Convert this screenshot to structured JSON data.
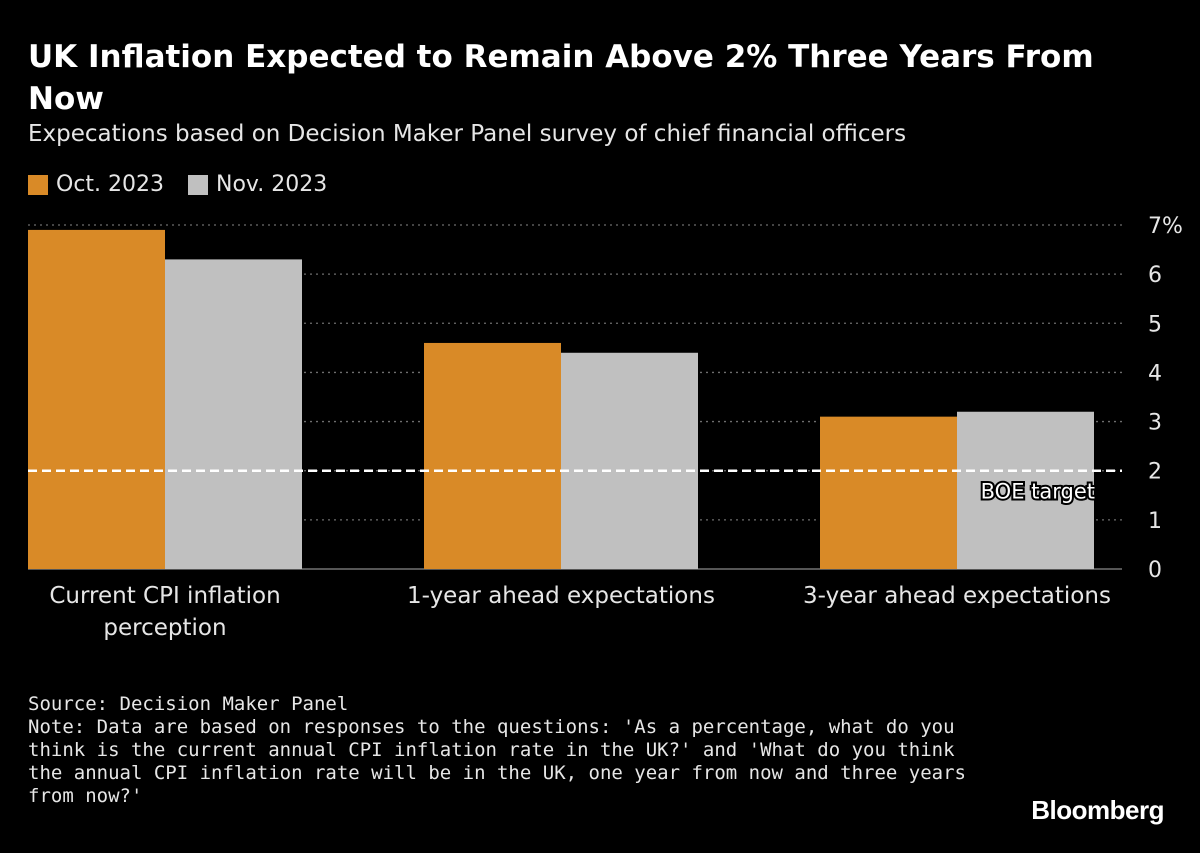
{
  "title": "UK Inflation Expected to Remain Above 2% Three Years From Now",
  "subtitle": "Expecations based on Decision Maker Panel survey of chief financial officers",
  "source": "Source: Decision Maker Panel",
  "note": "Note: Data are based on responses to the questions: 'As a percentage, what do you think is the current annual CPI inflation rate in the UK?' and 'What do you think the annual CPI inflation rate will be in the UK, one year from now and three years from now?'",
  "brand": "Bloomberg",
  "colors": {
    "background": "#000000",
    "oct": "#d98a27",
    "nov": "#c0c0c0",
    "grid": "#6e6e6e",
    "target": "#ffffff"
  },
  "chart_data": {
    "type": "bar",
    "title": "UK Inflation Expected to Remain Above 2% Three Years From Now",
    "subtitle": "Expecations based on Decision Maker Panel survey of chief financial officers",
    "categories": [
      [
        "Current CPI inflation",
        "perception"
      ],
      [
        "1-year ahead expectations"
      ],
      [
        "3-year ahead expectations"
      ]
    ],
    "series": [
      {
        "name": "Oct. 2023",
        "color": "#d98a27",
        "values": [
          6.9,
          4.6,
          3.1
        ]
      },
      {
        "name": "Nov. 2023",
        "color": "#c0c0c0",
        "values": [
          6.3,
          4.4,
          3.2
        ]
      }
    ],
    "yaxis": {
      "min": 0,
      "max": 7,
      "ticks": [
        0,
        1,
        2,
        3,
        4,
        5,
        6,
        7
      ],
      "tick_labels": [
        "0",
        "1",
        "2",
        "3",
        "4",
        "5",
        "6",
        "7%"
      ],
      "position": "right",
      "grid": "dotted"
    },
    "xlabel": "",
    "ylabel": "",
    "reference_line": {
      "value": 2,
      "label": "BOE target",
      "style": "dashed"
    },
    "legend": "top-left"
  }
}
